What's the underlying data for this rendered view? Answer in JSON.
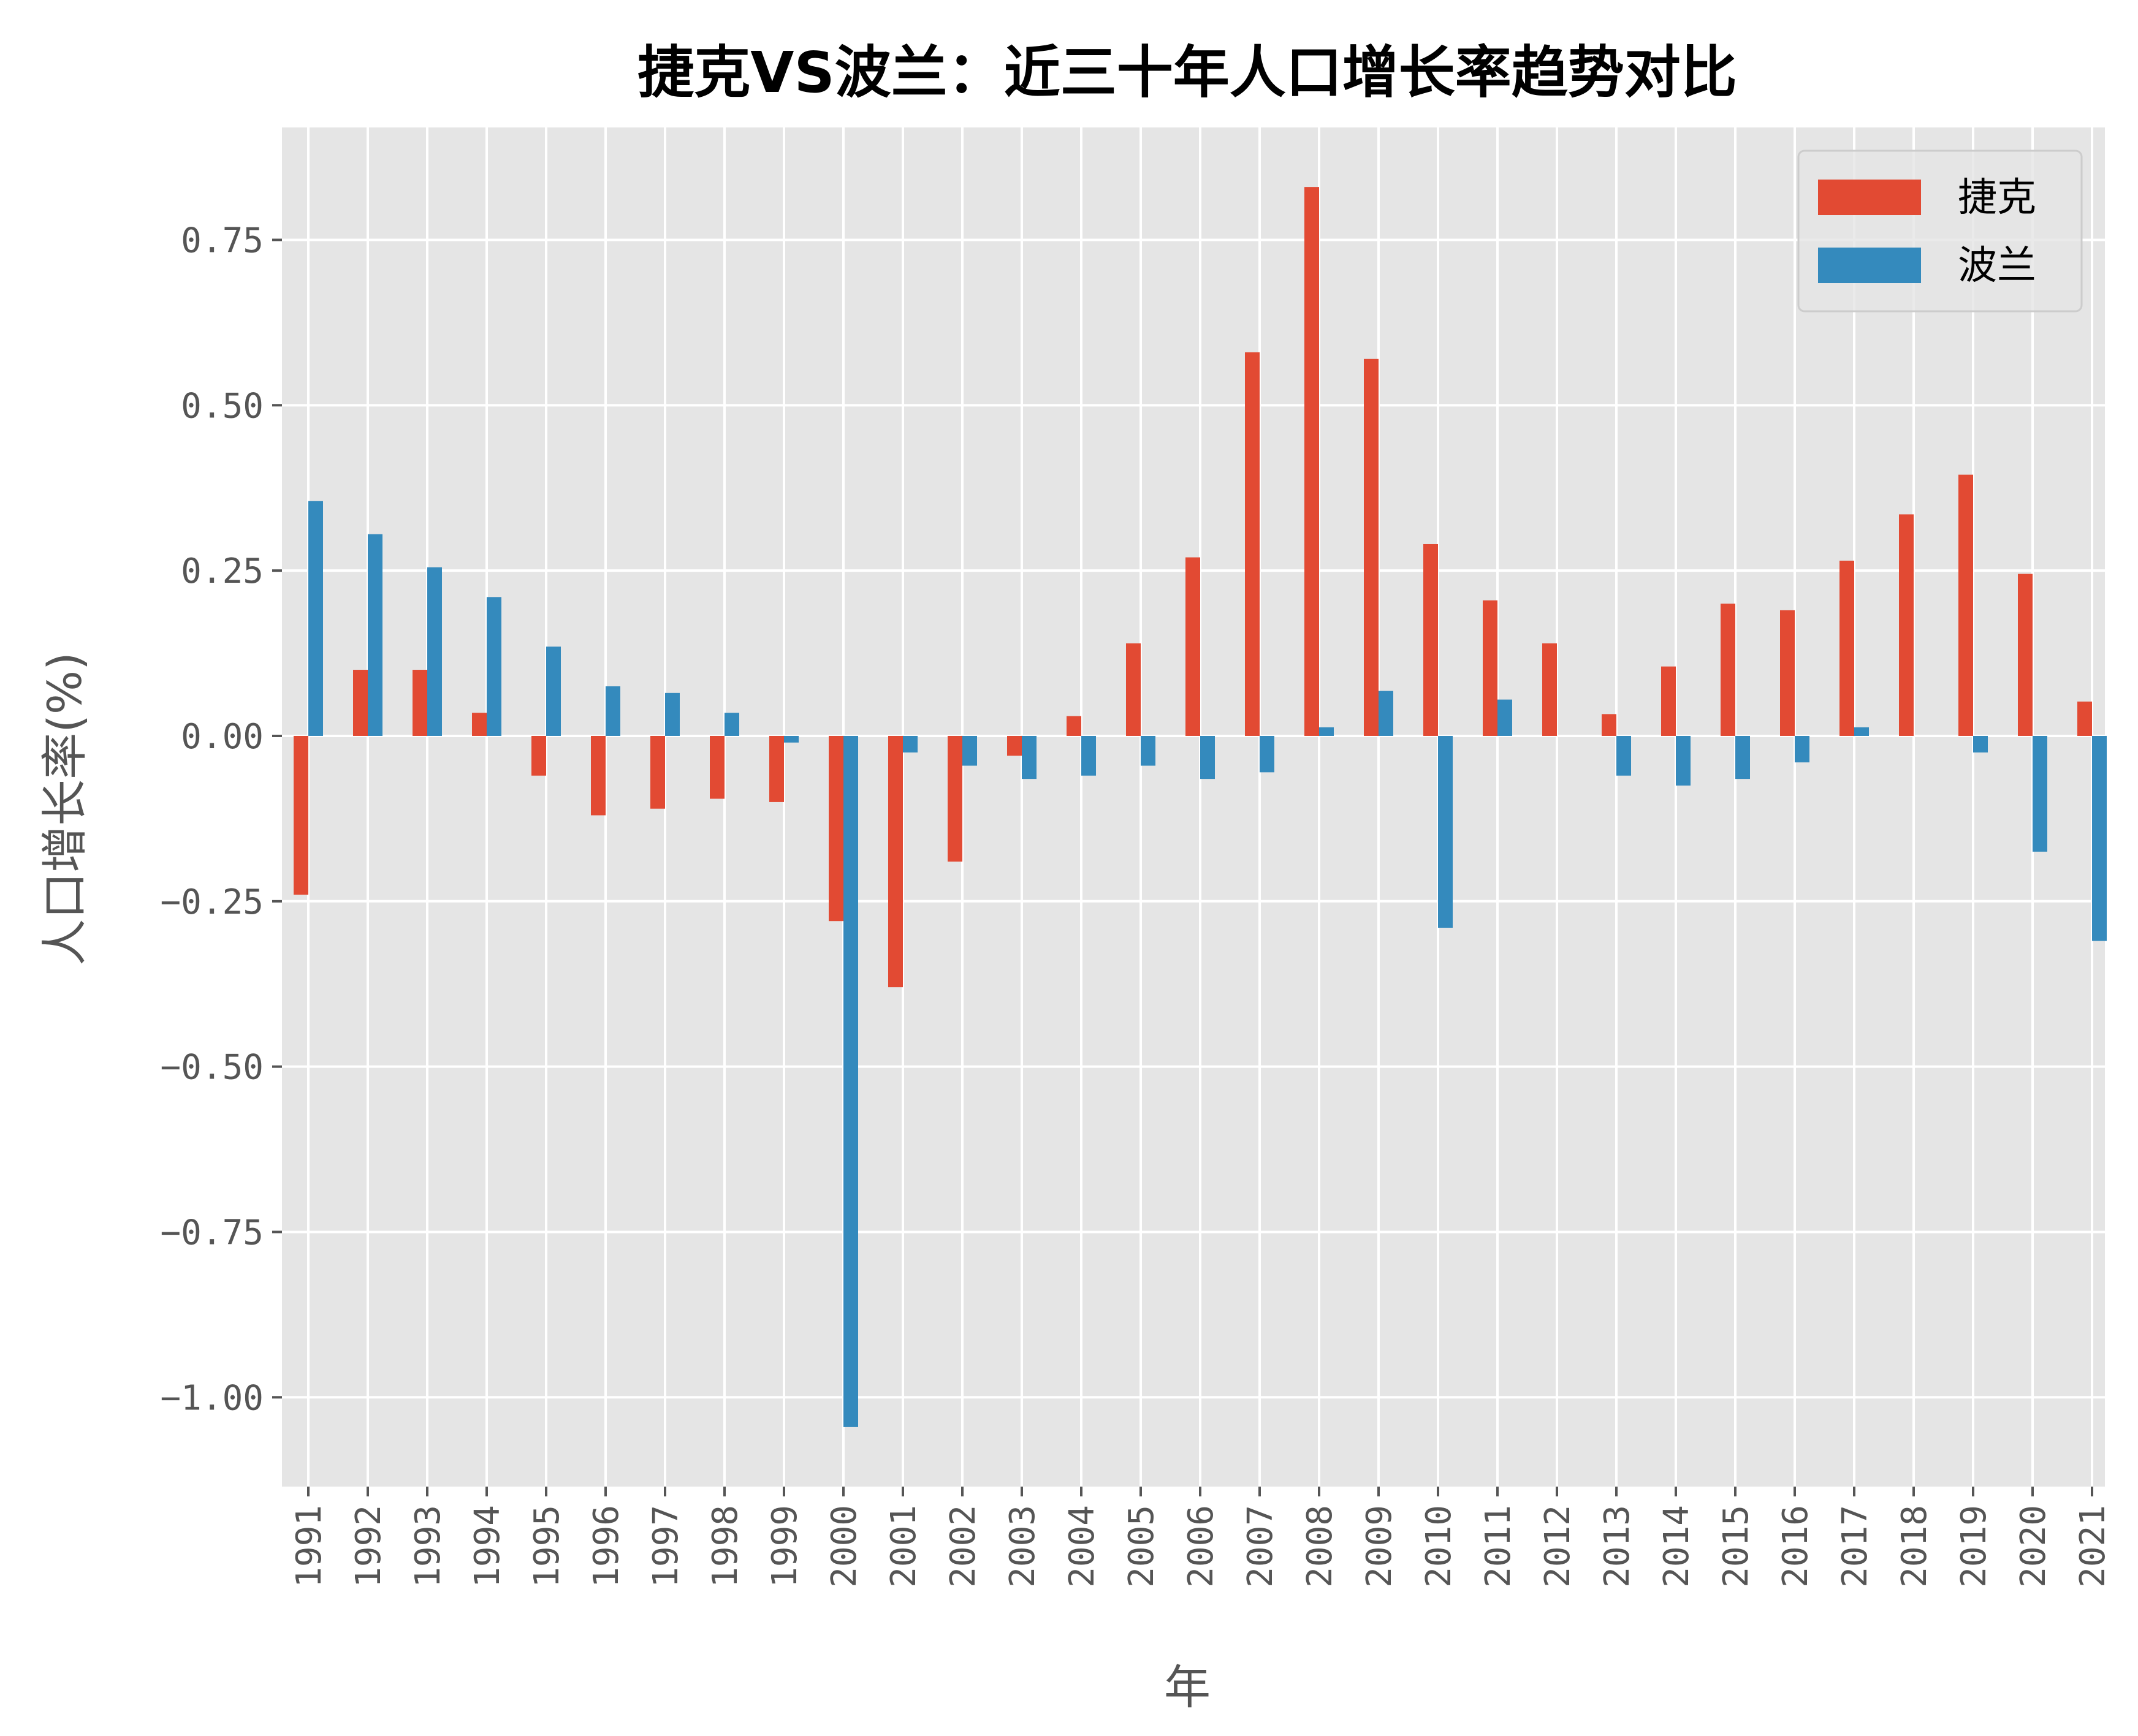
{
  "chart_data": {
    "type": "bar",
    "title": "捷克VS波兰：近三十年人口增长率趋势对比",
    "xlabel": "年",
    "ylabel": "人口增长率(%)",
    "categories": [
      "1991",
      "1992",
      "1993",
      "1994",
      "1995",
      "1996",
      "1997",
      "1998",
      "1999",
      "2000",
      "2001",
      "2002",
      "2003",
      "2004",
      "2005",
      "2006",
      "2007",
      "2008",
      "2009",
      "2010",
      "2011",
      "2012",
      "2013",
      "2014",
      "2015",
      "2016",
      "2017",
      "2018",
      "2019",
      "2020",
      "2021"
    ],
    "series": [
      {
        "name": "捷克",
        "color": "#E24A33",
        "values": [
          -0.24,
          0.1,
          0.1,
          0.035,
          -0.06,
          -0.12,
          -0.11,
          -0.095,
          -0.1,
          -0.28,
          -0.38,
          -0.19,
          -0.03,
          0.03,
          0.14,
          0.27,
          0.58,
          0.83,
          0.57,
          0.29,
          0.205,
          0.14,
          0.033,
          0.105,
          0.2,
          0.19,
          0.265,
          0.335,
          0.395,
          0.245,
          0.052
        ]
      },
      {
        "name": "波兰",
        "color": "#348ABD",
        "values": [
          0.355,
          0.305,
          0.255,
          0.21,
          0.135,
          0.075,
          0.065,
          0.035,
          -0.01,
          -1.045,
          -0.025,
          -0.045,
          -0.065,
          -0.06,
          -0.045,
          -0.065,
          -0.055,
          0.013,
          0.068,
          -0.29,
          0.055,
          0.0,
          -0.06,
          -0.075,
          -0.065,
          -0.04,
          0.013,
          0.0,
          -0.025,
          -0.175,
          -0.31
        ]
      }
    ],
    "yticks": [
      -1.0,
      -0.75,
      -0.5,
      -0.25,
      0.0,
      0.25,
      0.5,
      0.75
    ],
    "ytick_labels": [
      "−1.00",
      "−0.75",
      "−0.50",
      "−0.25",
      "0.00",
      "0.25",
      "0.50",
      "0.75"
    ],
    "ylim": [
      -1.135,
      0.92
    ],
    "grid": true,
    "legend_position": "top-right"
  }
}
